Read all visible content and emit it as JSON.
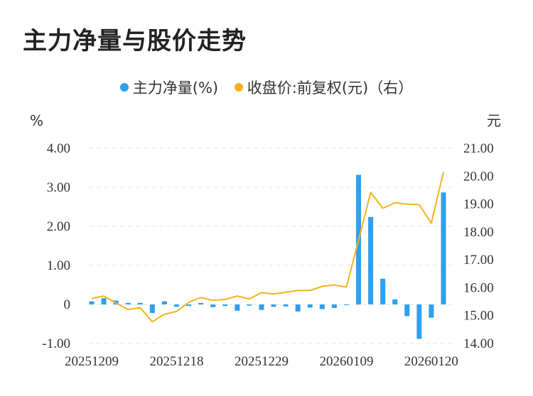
{
  "chart_data": {
    "type": "bar+line",
    "title": "主力净量与股价走势",
    "legend": [
      {
        "name": "主力净量(%)",
        "color": "#2f9ff0"
      },
      {
        "name": "收盘价:前复权(元)（右）",
        "color": "#f5b21c"
      }
    ],
    "left_axis": {
      "unit": "%",
      "ticks": [
        "4.00",
        "3.00",
        "2.00",
        "1.00",
        "0",
        "-1.00"
      ],
      "ylim": [
        -1,
        4
      ]
    },
    "right_axis": {
      "unit": "元",
      "ticks": [
        "21.00",
        "20.00",
        "19.00",
        "18.00",
        "17.00",
        "16.00",
        "15.00",
        "14.00"
      ],
      "ylim": [
        14,
        21
      ]
    },
    "x_tick_labels": [
      "20251209",
      "20251218",
      "20251229",
      "20260109",
      "20260120"
    ],
    "x_tick_positions": [
      0,
      7,
      14,
      21,
      28
    ],
    "bars": [
      0.08,
      0.16,
      0.1,
      0.04,
      0.04,
      -0.22,
      0.08,
      -0.06,
      -0.04,
      0.04,
      -0.07,
      -0.04,
      -0.16,
      -0.03,
      -0.14,
      -0.06,
      -0.05,
      -0.18,
      -0.08,
      -0.12,
      -0.09,
      -0.01,
      3.32,
      2.24,
      0.66,
      0.13,
      -0.3,
      -0.88,
      -0.34,
      2.87
    ],
    "line": [
      15.62,
      15.7,
      15.45,
      15.22,
      15.28,
      14.78,
      15.05,
      15.15,
      15.48,
      15.65,
      15.55,
      15.58,
      15.7,
      15.6,
      15.82,
      15.78,
      15.84,
      15.9,
      15.9,
      16.05,
      16.1,
      16.02,
      17.7,
      19.42,
      18.85,
      19.05,
      19.0,
      18.98,
      18.32,
      20.15
    ],
    "grid": "horizontal dashed"
  }
}
